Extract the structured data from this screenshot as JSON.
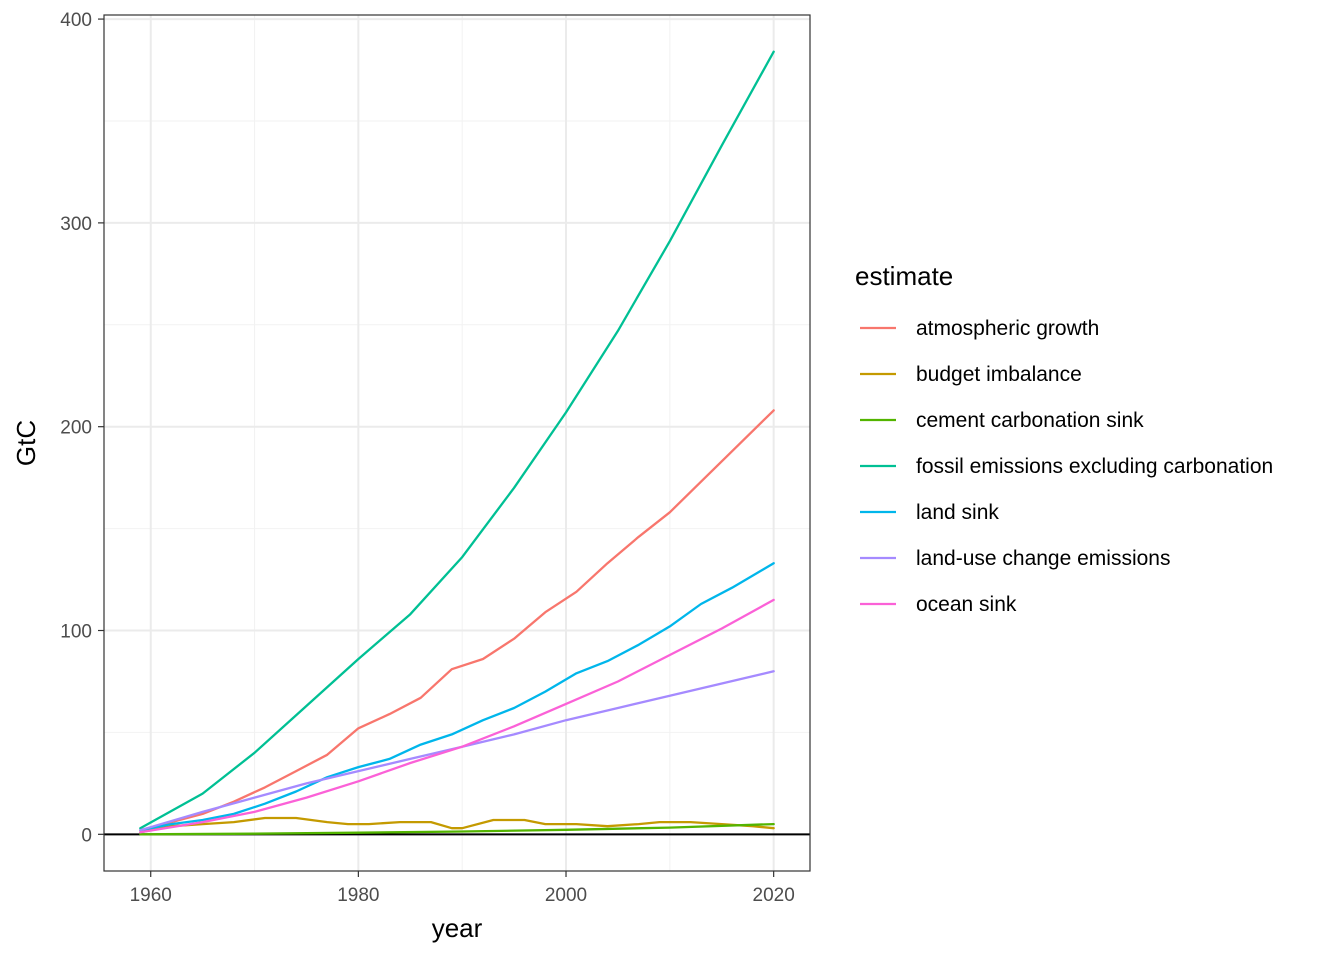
{
  "chart_data": {
    "type": "line",
    "xlabel": "year",
    "ylabel": "GtC",
    "xlim": [
      1955.5,
      2023.5
    ],
    "ylim": [
      -18,
      402
    ],
    "x_ticks": [
      1960,
      1980,
      2000,
      2020
    ],
    "y_ticks": [
      0,
      100,
      200,
      300,
      400
    ],
    "x_tick_labels": [
      "1960",
      "1980",
      "2000",
      "2020"
    ],
    "y_tick_labels": [
      "0",
      "100",
      "200",
      "300",
      "400"
    ],
    "grid": true,
    "hline": 0,
    "legend": {
      "title": "estimate",
      "placement": "right"
    },
    "series": [
      {
        "name": "atmospheric growth",
        "color": "#F8766D",
        "points": [
          [
            1959,
            2
          ],
          [
            1962,
            6
          ],
          [
            1965,
            10
          ],
          [
            1968,
            16
          ],
          [
            1971,
            23
          ],
          [
            1974,
            31
          ],
          [
            1977,
            39
          ],
          [
            1980,
            52
          ],
          [
            1983,
            59
          ],
          [
            1986,
            67
          ],
          [
            1989,
            81
          ],
          [
            1992,
            86
          ],
          [
            1995,
            96
          ],
          [
            1998,
            109
          ],
          [
            2001,
            119
          ],
          [
            2004,
            133
          ],
          [
            2007,
            146
          ],
          [
            2010,
            158
          ],
          [
            2013,
            173
          ],
          [
            2016,
            188
          ],
          [
            2019,
            203
          ],
          [
            2020,
            208
          ]
        ]
      },
      {
        "name": "budget imbalance",
        "color": "#C49A00",
        "points": [
          [
            1959,
            1
          ],
          [
            1962,
            4
          ],
          [
            1965,
            5
          ],
          [
            1968,
            6
          ],
          [
            1971,
            8
          ],
          [
            1974,
            8
          ],
          [
            1977,
            6
          ],
          [
            1979,
            5
          ],
          [
            1981,
            5
          ],
          [
            1984,
            6
          ],
          [
            1987,
            6
          ],
          [
            1989,
            3
          ],
          [
            1990,
            3
          ],
          [
            1993,
            7
          ],
          [
            1996,
            7
          ],
          [
            1998,
            5
          ],
          [
            2001,
            5
          ],
          [
            2004,
            4
          ],
          [
            2007,
            5
          ],
          [
            2009,
            6
          ],
          [
            2012,
            6
          ],
          [
            2015,
            5
          ],
          [
            2018,
            4
          ],
          [
            2020,
            3
          ]
        ]
      },
      {
        "name": "cement carbonation sink",
        "color": "#53B400",
        "points": [
          [
            1959,
            0
          ],
          [
            1970,
            0.3
          ],
          [
            1980,
            0.8
          ],
          [
            1990,
            1.4
          ],
          [
            2000,
            2.2
          ],
          [
            2010,
            3.3
          ],
          [
            2020,
            5
          ]
        ]
      },
      {
        "name": "fossil emissions excluding carbonation",
        "color": "#00C094",
        "points": [
          [
            1959,
            3
          ],
          [
            1965,
            20
          ],
          [
            1970,
            40
          ],
          [
            1975,
            63
          ],
          [
            1980,
            86
          ],
          [
            1985,
            108
          ],
          [
            1990,
            136
          ],
          [
            1995,
            170
          ],
          [
            2000,
            207
          ],
          [
            2005,
            247
          ],
          [
            2010,
            291
          ],
          [
            2015,
            338
          ],
          [
            2020,
            384
          ]
        ]
      },
      {
        "name": "land sink",
        "color": "#00B6EB",
        "points": [
          [
            1959,
            2
          ],
          [
            1962,
            5
          ],
          [
            1965,
            7
          ],
          [
            1968,
            10
          ],
          [
            1971,
            15
          ],
          [
            1974,
            21
          ],
          [
            1977,
            28
          ],
          [
            1980,
            33
          ],
          [
            1983,
            37
          ],
          [
            1986,
            44
          ],
          [
            1989,
            49
          ],
          [
            1992,
            56
          ],
          [
            1995,
            62
          ],
          [
            1998,
            70
          ],
          [
            2001,
            79
          ],
          [
            2004,
            85
          ],
          [
            2007,
            93
          ],
          [
            2010,
            102
          ],
          [
            2013,
            113
          ],
          [
            2016,
            121
          ],
          [
            2019,
            130
          ],
          [
            2020,
            133
          ]
        ]
      },
      {
        "name": "land-use change emissions",
        "color": "#A58AFF",
        "points": [
          [
            1959,
            2
          ],
          [
            1965,
            11
          ],
          [
            1970,
            18
          ],
          [
            1975,
            25
          ],
          [
            1980,
            31
          ],
          [
            1985,
            37
          ],
          [
            1990,
            43
          ],
          [
            1995,
            49
          ],
          [
            2000,
            56
          ],
          [
            2005,
            62
          ],
          [
            2010,
            68
          ],
          [
            2015,
            74
          ],
          [
            2020,
            80
          ]
        ]
      },
      {
        "name": "ocean sink",
        "color": "#FB61D7",
        "points": [
          [
            1959,
            1
          ],
          [
            1965,
            6
          ],
          [
            1970,
            11
          ],
          [
            1975,
            18
          ],
          [
            1980,
            26
          ],
          [
            1985,
            35
          ],
          [
            1990,
            43
          ],
          [
            1995,
            53
          ],
          [
            2000,
            64
          ],
          [
            2005,
            75
          ],
          [
            2010,
            88
          ],
          [
            2015,
            101
          ],
          [
            2020,
            115
          ]
        ]
      }
    ]
  }
}
